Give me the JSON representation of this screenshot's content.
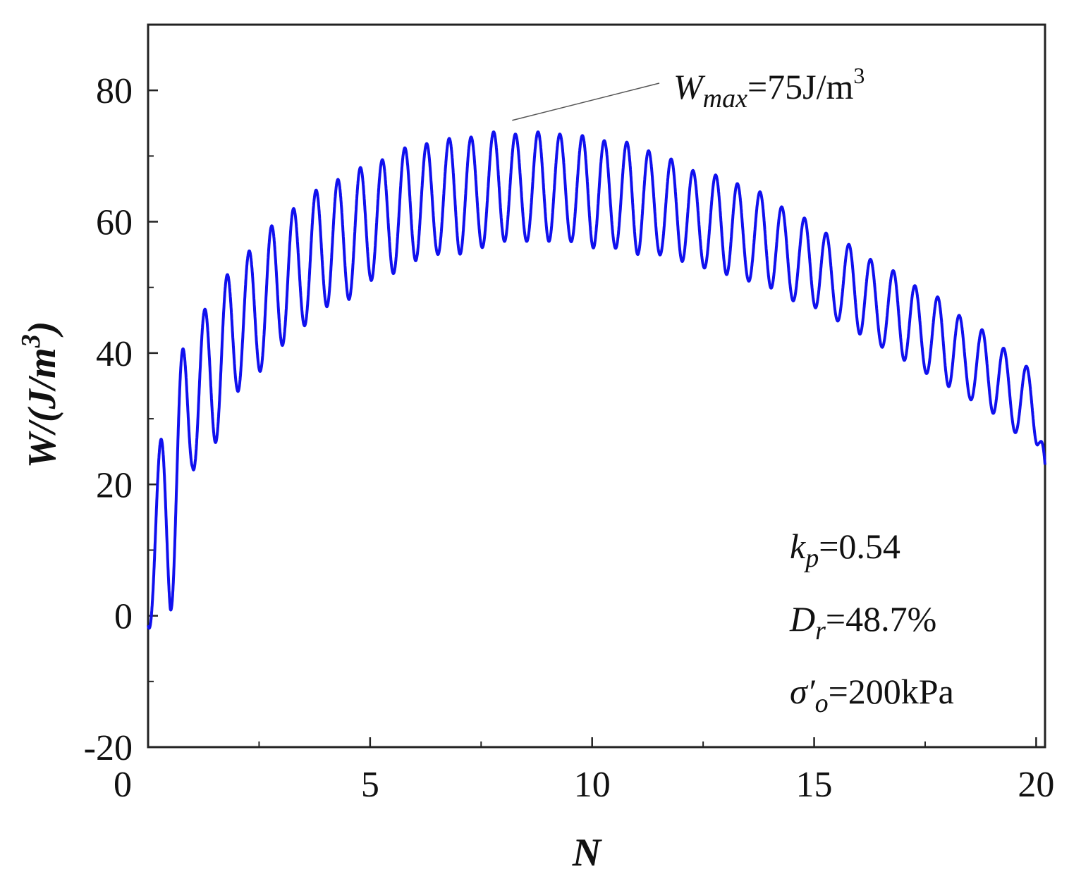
{
  "chart_data": {
    "type": "line",
    "xlabel": "N",
    "ylabel": {
      "main": "W/(J/m",
      "sup": "3",
      "close": ")"
    },
    "xlim": [
      0,
      20
    ],
    "ylim": [
      -20,
      90
    ],
    "xticks": [
      0,
      5,
      10,
      15,
      20
    ],
    "yticks": [
      -20,
      0,
      20,
      40,
      60,
      80
    ],
    "x_minor_step": 2.5,
    "y_minor_step": 10,
    "grid": false,
    "series_color": "#1010ee",
    "series": [
      {
        "values_description_free": true,
        "envelope_x": [
          0,
          0.5,
          1,
          1.5,
          2,
          2.5,
          3,
          3.5,
          4,
          4.5,
          5,
          5.5,
          6,
          6.5,
          7,
          7.5,
          8,
          8.5,
          9,
          9.5,
          10,
          10.5,
          11,
          11.5,
          12,
          12.5,
          13,
          13.5,
          14,
          14.5,
          15,
          15.5,
          16,
          16.5,
          17,
          17.5,
          18,
          18.5,
          19,
          19.5,
          20
        ],
        "peak_y": [
          16,
          35,
          45,
          48,
          55,
          56,
          62,
          62,
          67,
          66,
          70,
          69,
          73,
          71,
          74,
          72,
          75,
          72,
          75,
          72,
          74,
          71,
          73,
          69,
          70,
          66,
          68,
          64,
          65,
          60,
          61,
          56,
          57,
          52,
          53,
          48,
          49,
          43,
          44,
          38,
          38
        ],
        "trough_y": [
          -2,
          0,
          22,
          26,
          34,
          37,
          41,
          44,
          47,
          48,
          51,
          52,
          54,
          55,
          55,
          56,
          57,
          57,
          57,
          57,
          56,
          56,
          55,
          55,
          54,
          53,
          52,
          51,
          50,
          48,
          47,
          45,
          43,
          41,
          39,
          37,
          35,
          33,
          31,
          28,
          26
        ],
        "end_y": 23
      }
    ],
    "annotations": {
      "wmax": {
        "label_main": "W",
        "label_sub": "max",
        "label_rest": "=75J/m",
        "label_sup": "3",
        "point_x": 8.2,
        "point_y": 75
      },
      "kp": {
        "sym": "k",
        "sub": "p",
        "rest": "=0.54"
      },
      "dr": {
        "sym": "D",
        "sub": "r",
        "rest": "=48.7%"
      },
      "sigma": {
        "sym": "σ′",
        "sub": "o",
        "rest": "=200kPa"
      }
    }
  }
}
